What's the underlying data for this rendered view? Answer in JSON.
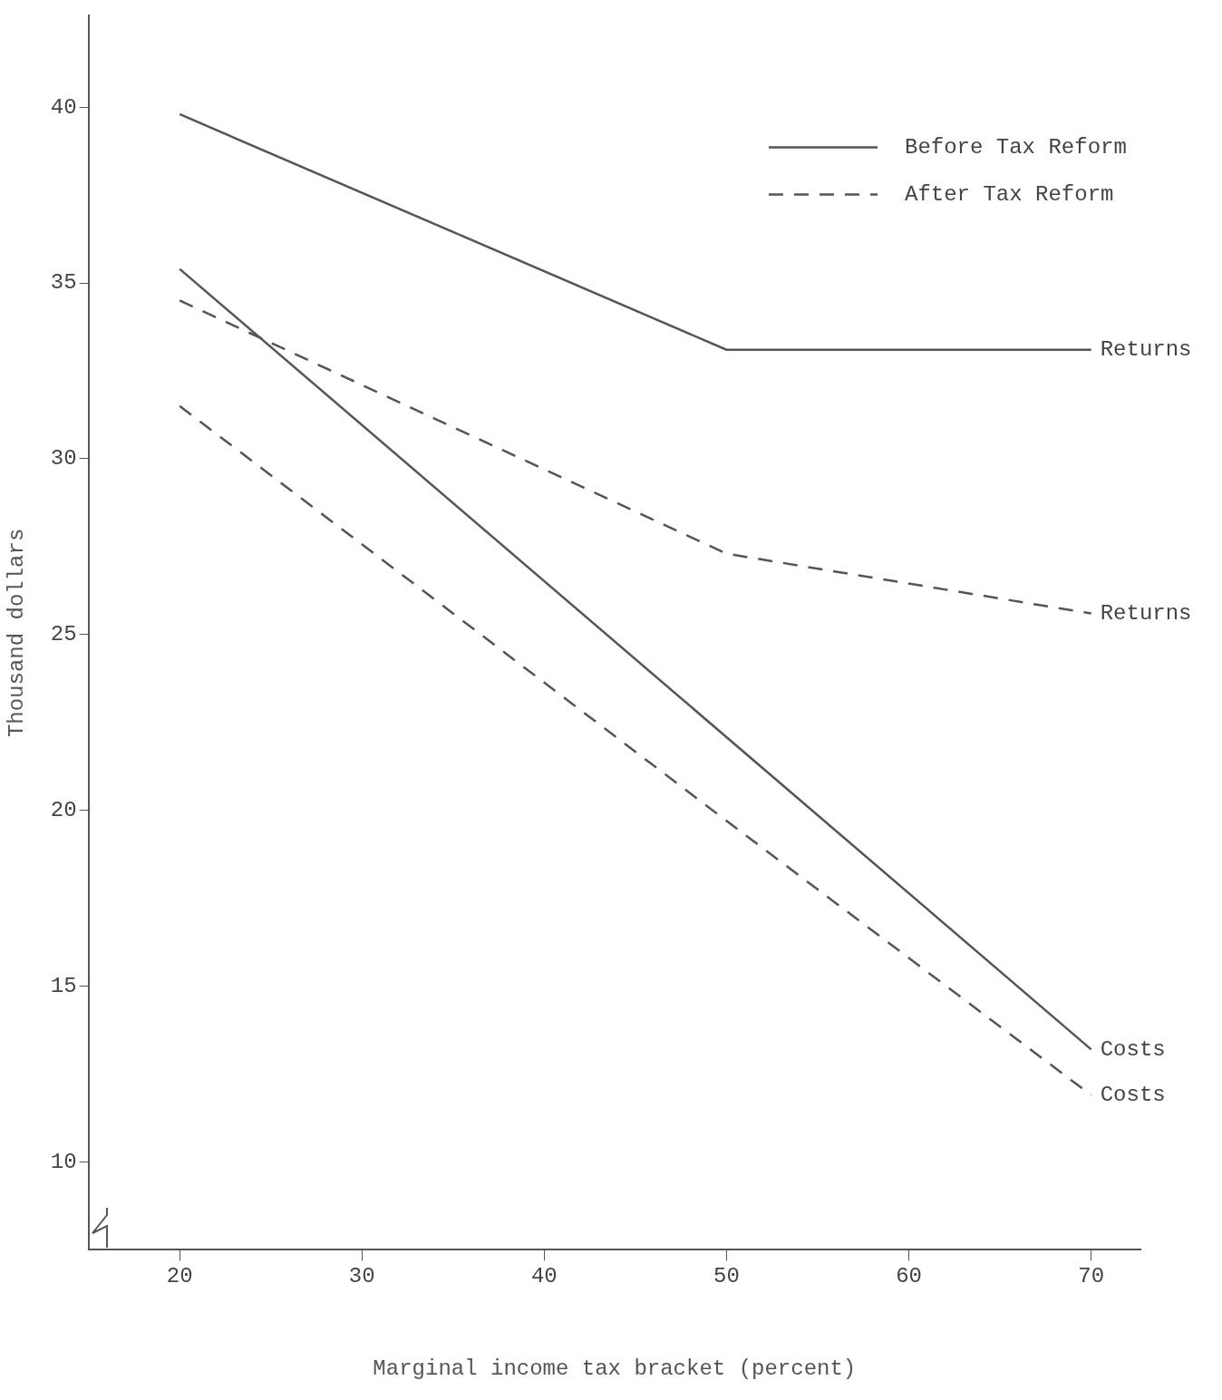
{
  "chart_data": {
    "type": "line",
    "xlabel": "Marginal income tax bracket (percent)",
    "ylabel": "Thousand dollars",
    "xlim": [
      15,
      72.7
    ],
    "xticks": [
      20,
      30,
      40,
      50,
      60,
      70
    ],
    "ylim": [
      7.5,
      42.6
    ],
    "yticks": [
      10,
      15,
      20,
      25,
      30,
      35,
      40
    ],
    "grid": false,
    "legend": "top right",
    "marker": "none",
    "series": [
      {
        "name": "Before Tax Reform",
        "color": "#555555",
        "line_style": "solid",
        "x": [
          20,
          50,
          70
        ],
        "values": [
          39.8,
          33.1,
          33.1
        ]
      },
      {
        "name": "After Tax Reform",
        "color": "#555555",
        "line_style": "dashed",
        "x": [
          20,
          50,
          70
        ],
        "values": [
          34.5,
          27.3,
          25.6
        ]
      },
      {
        "color": "#555555",
        "line_style": "solid",
        "x": [
          20,
          70
        ],
        "values": [
          35.4,
          13.2
        ]
      },
      {
        "color": "#555555",
        "line_style": "dashed",
        "x": [
          20,
          50,
          70
        ],
        "values": [
          31.5,
          19.7,
          11.9
        ]
      }
    ],
    "annotations": [
      "Returns",
      "Returns",
      "Costs",
      "Costs"
    ]
  }
}
